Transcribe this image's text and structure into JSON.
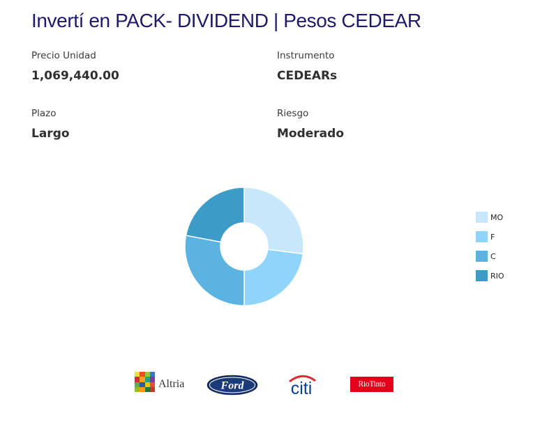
{
  "header": {
    "title": "Invertí en PACK- DIVIDEND | Pesos CEDEAR"
  },
  "fields": {
    "precio": {
      "label": "Precio Unidad",
      "value": "1,069,440.00"
    },
    "instrumento": {
      "label": "Instrumento",
      "value": "CEDEARs"
    },
    "plazo": {
      "label": "Plazo",
      "value": "Largo"
    },
    "riesgo": {
      "label": "Riesgo",
      "value": "Moderado"
    }
  },
  "chart_data": {
    "type": "pie",
    "style": "donut",
    "legend_position": "right",
    "categories": [
      "MO",
      "F",
      "C",
      "RIO"
    ],
    "values": [
      27,
      23,
      28,
      22
    ],
    "colors": [
      "#c7e8fb",
      "#8fd4fa",
      "#5ab4df",
      "#3d9bc7"
    ]
  },
  "logos": {
    "altria": {
      "word": "Altria",
      "icon": "altria-mosaic-icon"
    },
    "ford": {
      "word": "Ford",
      "icon": "ford-oval-icon"
    },
    "citi": {
      "word": "citi",
      "icon": "citi-arc-icon"
    },
    "riotinto": {
      "word": "RioTinto",
      "icon": "riotinto-box-icon"
    }
  }
}
